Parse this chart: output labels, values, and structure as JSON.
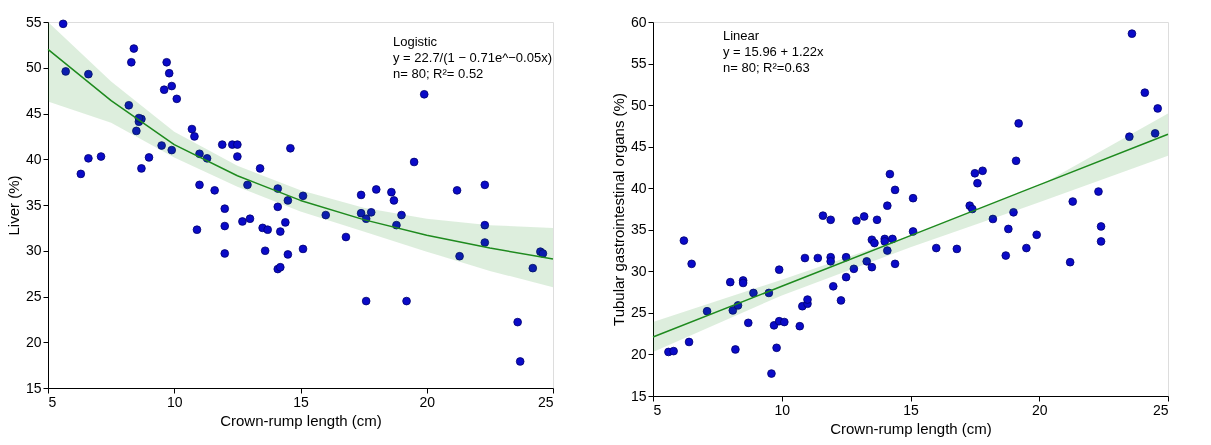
{
  "chart_data": [
    {
      "type": "scatter",
      "xlabel": "Crown-rump length (cm)",
      "ylabel": "Liver (%)",
      "xlim": [
        5,
        25
      ],
      "ylim": [
        15,
        55
      ],
      "xticks": [
        5,
        10,
        15,
        20,
        25
      ],
      "yticks": [
        15,
        20,
        25,
        30,
        35,
        40,
        45,
        50,
        55
      ],
      "grid": false,
      "marker": "circle",
      "annotations": [
        "Logistic",
        "y = 22.7/(1 − 0.71e^−0.05x)",
        "n= 80; R²= 0.52"
      ],
      "series": [
        {
          "color": "#0a0ac8",
          "x": [
            5.6,
            5.7,
            6.6,
            6.3,
            6.6,
            7.1,
            8.2,
            8.3,
            8.4,
            8.5,
            8.6,
            8.7,
            8.7,
            8.6,
            9.0,
            9.5,
            9.6,
            9.7,
            9.8,
            9.9,
            9.9,
            10.1,
            10.7,
            10.8,
            10.9,
            11.0,
            11.0,
            11.3,
            11.6,
            11.9,
            12.0,
            12.0,
            12.0,
            12.3,
            12.5,
            12.5,
            12.7,
            12.9,
            13.0,
            13.4,
            13.5,
            13.6,
            13.7,
            14.1,
            14.1,
            14.1,
            14.2,
            14.2,
            14.4,
            14.5,
            14.5,
            14.6,
            15.1,
            15.1,
            16.0,
            16.8,
            17.4,
            17.4,
            17.6,
            17.6,
            17.8,
            18.0,
            18.6,
            18.7,
            19.0,
            18.8,
            19.2,
            19.5,
            19.9,
            21.2,
            21.3,
            22.3,
            22.3,
            22.3,
            23.6,
            23.7,
            24.2,
            24.5,
            24.6
          ],
          "values": [
            54.8,
            49.6,
            49.3,
            38.4,
            40.1,
            40.3,
            45.9,
            50.6,
            52.1,
            43.1,
            44.1,
            44.4,
            39.0,
            44.5,
            40.2,
            41.5,
            47.6,
            50.6,
            49.4,
            41.0,
            48.0,
            46.6,
            43.3,
            42.5,
            32.3,
            40.6,
            37.2,
            40.1,
            36.6,
            41.6,
            34.6,
            32.7,
            29.7,
            41.6,
            41.6,
            40.3,
            33.2,
            37.2,
            33.5,
            39.0,
            32.5,
            30.0,
            32.3,
            36.8,
            34.8,
            28.0,
            28.2,
            32.1,
            33.1,
            35.5,
            29.6,
            41.2,
            36.0,
            30.2,
            33.9,
            31.5,
            36.1,
            34.1,
            33.5,
            24.5,
            34.2,
            36.7,
            36.4,
            35.5,
            33.9,
            32.8,
            24.5,
            39.7,
            47.1,
            36.6,
            29.4,
            30.9,
            32.8,
            37.2,
            22.2,
            17.9,
            28.1,
            29.9,
            29.7
          ]
        },
        {
          "type": "line",
          "marker": "none",
          "color": "#1e8a1e",
          "x": [
            5,
            7.5,
            10,
            12.5,
            15,
            17.5,
            20,
            22.5,
            25
          ],
          "values": [
            52.0,
            46.4,
            41.6,
            38.2,
            35.5,
            33.4,
            31.7,
            30.3,
            29.1
          ],
          "lower": [
            46.3,
            44.0,
            40.2,
            37.0,
            34.3,
            32.1,
            29.9,
            27.8,
            26.0
          ],
          "upper": [
            55.0,
            48.5,
            43.0,
            39.3,
            36.6,
            34.7,
            33.5,
            32.8,
            32.5
          ]
        }
      ]
    },
    {
      "type": "scatter",
      "xlabel": "Crown-rump length (cm)",
      "ylabel": "Tubular gastrointestinal organs (%)",
      "xlim": [
        5,
        25
      ],
      "ylim": [
        15,
        60
      ],
      "xticks": [
        5,
        10,
        15,
        20,
        25
      ],
      "yticks": [
        15,
        20,
        25,
        30,
        35,
        40,
        45,
        50,
        55,
        60
      ],
      "grid": false,
      "marker": "circle",
      "annotations": [
        "Linear",
        "y = 15.96 + 1.22x",
        "n= 80; R²=0.63"
      ],
      "series": [
        {
          "color": "#0a0ac8",
          "x": [
            5.6,
            5.8,
            6.2,
            6.4,
            6.5,
            7.1,
            8.0,
            8.1,
            8.2,
            8.3,
            8.5,
            8.5,
            8.7,
            8.9,
            9.5,
            9.6,
            9.7,
            9.8,
            9.9,
            9.9,
            10.1,
            10.7,
            10.8,
            10.9,
            11.0,
            11.0,
            11.4,
            11.6,
            11.9,
            11.9,
            11.9,
            12.0,
            12.3,
            12.5,
            12.5,
            12.8,
            12.9,
            13.2,
            13.3,
            13.5,
            13.5,
            13.6,
            13.7,
            14.0,
            14.0,
            14.1,
            14.1,
            14.2,
            14.3,
            14.4,
            14.4,
            15.1,
            15.1,
            16.0,
            16.8,
            17.3,
            17.4,
            17.5,
            17.6,
            17.8,
            18.2,
            18.7,
            18.8,
            19.0,
            19.1,
            19.2,
            19.5,
            19.9,
            21.2,
            21.3,
            22.3,
            22.4,
            22.4,
            23.5,
            23.6,
            24.1,
            24.6,
            24.5
          ],
          "values": [
            20.3,
            20.4,
            33.7,
            21.5,
            30.9,
            25.2,
            28.7,
            25.3,
            20.6,
            25.9,
            28.9,
            28.6,
            23.8,
            27.4,
            27.4,
            17.7,
            23.5,
            20.8,
            24.0,
            30.2,
            23.9,
            23.4,
            25.8,
            31.6,
            26.1,
            26.6,
            31.6,
            36.7,
            36.2,
            31.7,
            31.2,
            28.2,
            26.5,
            29.3,
            31.7,
            30.3,
            36.1,
            36.6,
            31.2,
            30.5,
            33.8,
            33.4,
            36.2,
            33.9,
            33.6,
            32.5,
            37.9,
            41.7,
            33.9,
            39.8,
            30.9,
            38.8,
            34.8,
            32.8,
            32.7,
            37.9,
            37.5,
            41.8,
            40.6,
            42.1,
            36.3,
            31.9,
            35.1,
            37.1,
            43.3,
            47.8,
            32.8,
            34.4,
            31.1,
            38.4,
            39.6,
            35.4,
            33.6,
            46.2,
            58.6,
            51.5,
            49.6,
            46.6
          ]
        },
        {
          "type": "line",
          "marker": "none",
          "color": "#1e8a1e",
          "x": [
            5,
            10,
            15,
            20,
            25
          ],
          "values": [
            22.1,
            28.2,
            34.3,
            40.4,
            46.5
          ],
          "lower": [
            20.3,
            27.1,
            32.9,
            38.3,
            43.9
          ],
          "upper": [
            23.9,
            29.0,
            34.3,
            40.3,
            49.0
          ]
        }
      ]
    }
  ]
}
